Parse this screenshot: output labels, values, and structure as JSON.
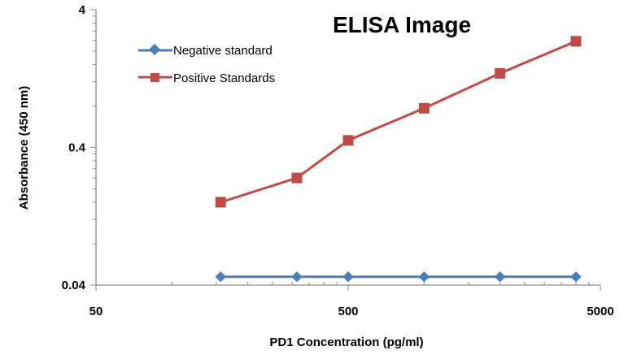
{
  "chart_data": {
    "type": "line",
    "title": "ELISA Image",
    "xlabel": "PD1 Concentration (pg/ml)",
    "ylabel": "Absorbance (450 nm)",
    "x_scale": "log",
    "y_scale": "log",
    "xlim": [
      50,
      5000
    ],
    "ylim": [
      0.04,
      4
    ],
    "x_ticks": [
      50,
      500,
      5000
    ],
    "x_tick_labels": [
      "50",
      "500",
      "5000"
    ],
    "y_ticks": [
      0.04,
      0.4,
      4
    ],
    "y_tick_labels": [
      "0.04",
      "0.4",
      "4"
    ],
    "x": [
      156,
      313,
      500,
      1000,
      2000,
      4000
    ],
    "series": [
      {
        "name": "Negative standard",
        "color": "#4a7ebb",
        "marker": "diamond",
        "values": [
          0.046,
          0.046,
          0.046,
          0.046,
          0.046,
          0.046
        ]
      },
      {
        "name": "Positive Standards",
        "color": "#be4b48",
        "marker": "square",
        "values": [
          0.16,
          0.24,
          0.45,
          0.77,
          1.38,
          2.36
        ]
      }
    ],
    "legend_position": "top-left",
    "grid": false
  }
}
